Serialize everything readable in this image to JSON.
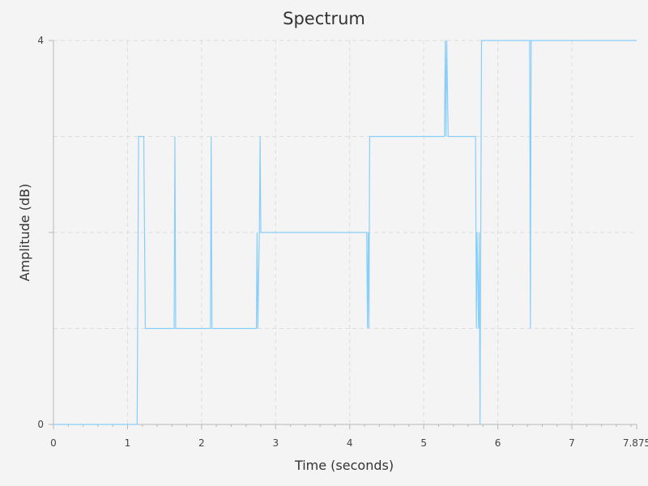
{
  "chart_data": {
    "type": "line",
    "title": "Spectrum",
    "xlabel": "Time (seconds)",
    "ylabel": "Amplitude (dB)",
    "xlim": [
      0,
      7.875
    ],
    "ylim": [
      0,
      4
    ],
    "x_ticks": [
      "0",
      "1",
      "2",
      "3",
      "4",
      "5",
      "6",
      "7",
      "7.875"
    ],
    "y_ticks": [
      "0",
      "4"
    ],
    "grid": true,
    "legend": "none",
    "series_color": "#87cefa",
    "series": [
      {
        "x": [
          0,
          1.13,
          1.15,
          1.22,
          1.24,
          1.63,
          1.64,
          1.65,
          2.12,
          2.13,
          2.14,
          2.74,
          2.75,
          2.76,
          2.78,
          2.79,
          2.8,
          2.82,
          4.23,
          4.24,
          4.25,
          4.26,
          4.27,
          5.28,
          5.29,
          5.3,
          5.31,
          5.33,
          5.7,
          5.71,
          5.72,
          5.74,
          5.75,
          5.76,
          5.78,
          6.43,
          6.44,
          6.45,
          7.875
        ],
        "y": [
          0,
          0,
          3,
          3,
          1,
          1,
          3,
          1,
          1,
          3,
          1,
          1,
          2,
          1,
          2,
          3,
          2,
          2,
          2,
          1,
          2,
          1,
          3,
          3,
          4,
          3,
          4,
          3,
          3,
          1,
          2,
          1,
          2,
          0,
          4,
          4,
          1,
          4,
          4
        ]
      }
    ]
  }
}
